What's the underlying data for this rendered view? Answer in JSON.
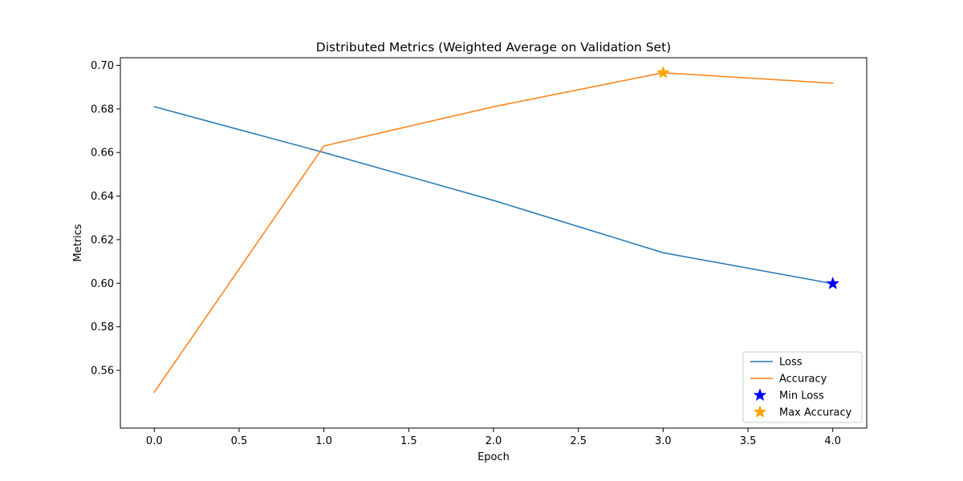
{
  "chart_data": {
    "type": "line",
    "title": "Distributed Metrics (Weighted Average on Validation Set)",
    "xlabel": "Epoch",
    "ylabel": "Metrics",
    "xlim": [
      -0.2,
      4.2
    ],
    "ylim": [
      0.5335,
      0.7035
    ],
    "x_ticks": [
      0.0,
      0.5,
      1.0,
      1.5,
      2.0,
      2.5,
      3.0,
      3.5,
      4.0
    ],
    "x_tick_labels": [
      "0.0",
      "0.5",
      "1.0",
      "1.5",
      "2.0",
      "2.5",
      "3.0",
      "3.5",
      "4.0"
    ],
    "y_ticks": [
      0.56,
      0.58,
      0.6,
      0.62,
      0.64,
      0.66,
      0.68,
      0.7
    ],
    "y_tick_labels": [
      "0.56",
      "0.58",
      "0.60",
      "0.62",
      "0.64",
      "0.66",
      "0.68",
      "0.70"
    ],
    "grid": false,
    "legend_position": "lower-right",
    "x": [
      0,
      1,
      2,
      3,
      4
    ],
    "series": [
      {
        "name": "Loss",
        "color": "#1f77b4",
        "values": [
          0.681,
          0.66,
          0.638,
          0.614,
          0.5998
        ]
      },
      {
        "name": "Accuracy",
        "color": "#ff7f0e",
        "values": [
          0.55,
          0.663,
          0.681,
          0.6966,
          0.6918
        ]
      }
    ],
    "markers": [
      {
        "name": "Min Loss",
        "color": "#0000ff",
        "shape": "star",
        "x": 4,
        "y": 0.5998
      },
      {
        "name": "Max Accuracy",
        "color": "#ffa500",
        "shape": "star",
        "x": 3,
        "y": 0.6966
      }
    ]
  }
}
